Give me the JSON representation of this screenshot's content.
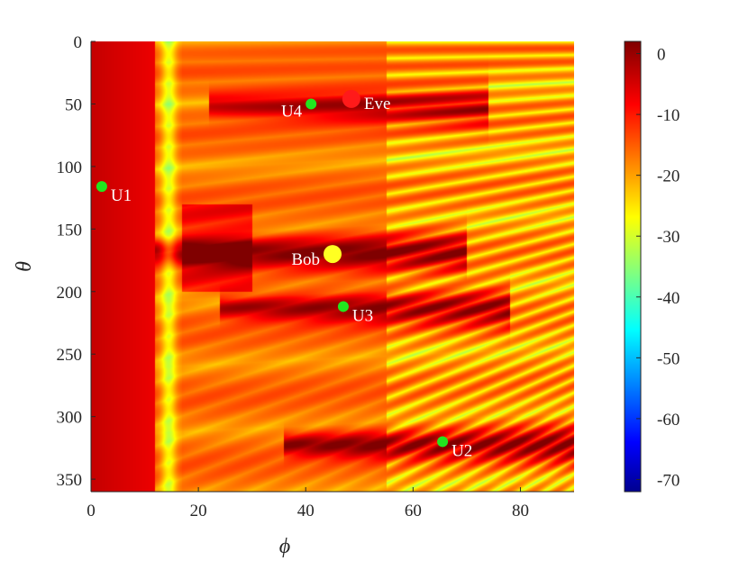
{
  "chart_data": {
    "type": "heatmap",
    "xlabel": "ϕ",
    "ylabel": "θ",
    "xlim": [
      0,
      90
    ],
    "ylim": [
      0,
      360
    ],
    "y_reversed": true,
    "x_ticks": [
      0,
      20,
      40,
      60,
      80
    ],
    "y_ticks": [
      0,
      50,
      100,
      150,
      200,
      250,
      300,
      350
    ],
    "colorbar": {
      "min": -72,
      "max": 2,
      "ticks": [
        0,
        -10,
        -20,
        -30,
        -40,
        -50,
        -60,
        -70
      ],
      "colormap": "jet"
    },
    "hot_bands": [
      {
        "theta": 50,
        "phi_start": 30,
        "phi_end": 68,
        "value": 0
      },
      {
        "theta": 168,
        "phi_start": 18,
        "phi_end": 64,
        "value": 0
      },
      {
        "theta": 212,
        "phi_start": 32,
        "phi_end": 72,
        "value": 0
      },
      {
        "theta": 322,
        "phi_start": 44,
        "phi_end": 90,
        "value": 0
      }
    ],
    "points": [
      {
        "name": "U1",
        "phi": 2,
        "theta": 116,
        "color": "#22e51f"
      },
      {
        "name": "U4",
        "phi": 41,
        "theta": 50,
        "color": "#22e51f"
      },
      {
        "name": "Eve",
        "phi": 48.5,
        "theta": 46,
        "color": "#ff1a1a"
      },
      {
        "name": "Bob",
        "phi": 45,
        "theta": 170,
        "color": "#ffff22"
      },
      {
        "name": "U3",
        "phi": 47,
        "theta": 212,
        "color": "#22e51f"
      },
      {
        "name": "U2",
        "phi": 65.5,
        "theta": 320,
        "color": "#22e51f"
      }
    ]
  }
}
